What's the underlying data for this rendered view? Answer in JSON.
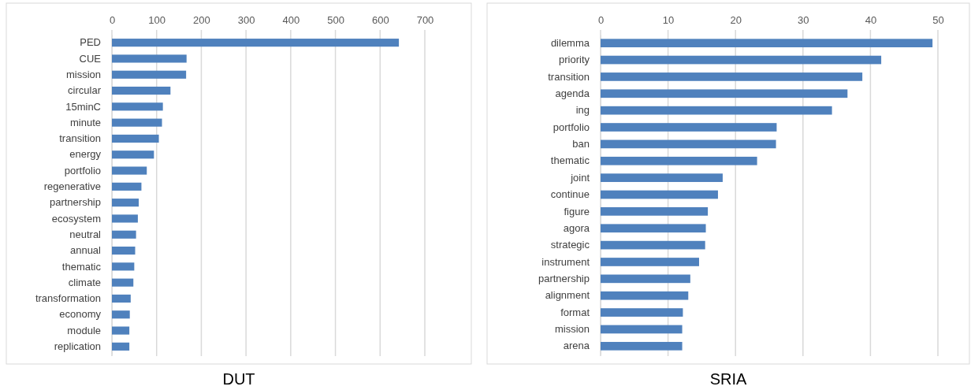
{
  "chart_data": [
    {
      "type": "bar",
      "orientation": "horizontal",
      "title": "DUT",
      "categories": [
        "PED",
        "CUE",
        "mission",
        "circular",
        "15minC",
        "minute",
        "transition",
        "energy",
        "portfolio",
        "regenerative",
        "partnership",
        "ecosystem",
        "neutral",
        "annual",
        "thematic",
        "climate",
        "transformation",
        "economy",
        "module",
        "replication"
      ],
      "values": [
        642,
        167,
        166,
        131,
        114,
        112,
        105,
        94,
        78,
        66,
        60,
        58,
        54,
        52,
        50,
        48,
        42,
        40,
        39,
        39
      ],
      "color": "#4f81bd",
      "xlim": [
        0,
        700
      ],
      "xticks": [
        0,
        100,
        200,
        300,
        400,
        500,
        600,
        700
      ],
      "grid": "x"
    },
    {
      "type": "bar",
      "orientation": "horizontal",
      "title": "SRIA",
      "categories": [
        "dilemma",
        "priority",
        "transition",
        "agenda",
        "ing",
        "portfolio",
        "ban",
        "thematic",
        "joint",
        "continue",
        "figure",
        "agora",
        "strategic",
        "instrument",
        "partnership",
        "alignment",
        "format",
        "mission",
        "arena"
      ],
      "values": [
        49.2,
        41.6,
        38.8,
        36.6,
        34.3,
        26.1,
        26.0,
        23.2,
        18.1,
        17.4,
        15.9,
        15.6,
        15.5,
        14.6,
        13.3,
        13.0,
        12.2,
        12.1,
        12.1
      ],
      "color": "#4f81bd",
      "xlim": [
        0,
        50
      ],
      "xticks": [
        0,
        10,
        20,
        30,
        40,
        50
      ],
      "grid": "x"
    }
  ]
}
